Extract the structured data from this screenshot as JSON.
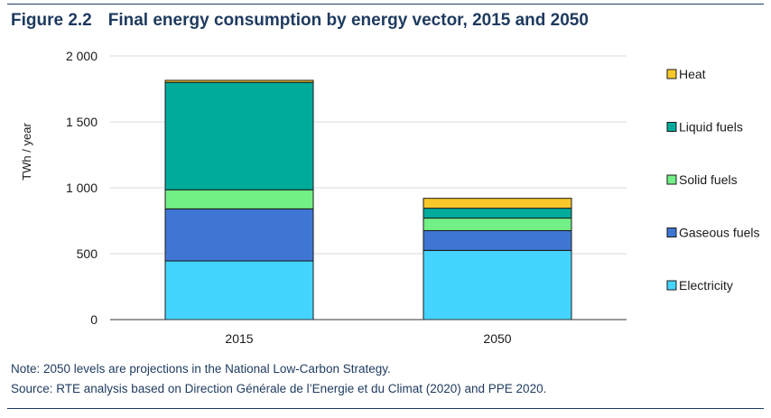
{
  "figure": {
    "number": "Figure 2.2",
    "title": "Final energy consumption by energy vector, 2015 and 2050"
  },
  "notes": {
    "note": "Note: 2050 levels are projections in the National Low-Carbon Strategy.",
    "source": "Source: RTE analysis based on Direction Générale de l’Energie et du Climat (2020) and PPE 2020."
  },
  "chart_data": {
    "type": "bar",
    "stacked": true,
    "categories": [
      "2015",
      "2050"
    ],
    "ylabel": "TWh / year",
    "ylim": [
      0,
      2000
    ],
    "yticks": [
      0,
      500,
      1000,
      1500,
      2000
    ],
    "ytick_labels": [
      "0",
      "500",
      "1 000",
      "1 500",
      "2 000"
    ],
    "grid": true,
    "legend_position": "right",
    "series": [
      {
        "name": "Electricity",
        "color": "#45d4ff",
        "values": [
          445,
          525
        ]
      },
      {
        "name": "Gaseous fuels",
        "color": "#3f76d3",
        "values": [
          395,
          150
        ]
      },
      {
        "name": "Solid fuels",
        "color": "#72ef86",
        "values": [
          145,
          95
        ]
      },
      {
        "name": "Liquid fuels",
        "color": "#00ab9c",
        "values": [
          815,
          75
        ]
      },
      {
        "name": "Heat",
        "color": "#f8c72a",
        "values": [
          15,
          75
        ]
      }
    ]
  }
}
